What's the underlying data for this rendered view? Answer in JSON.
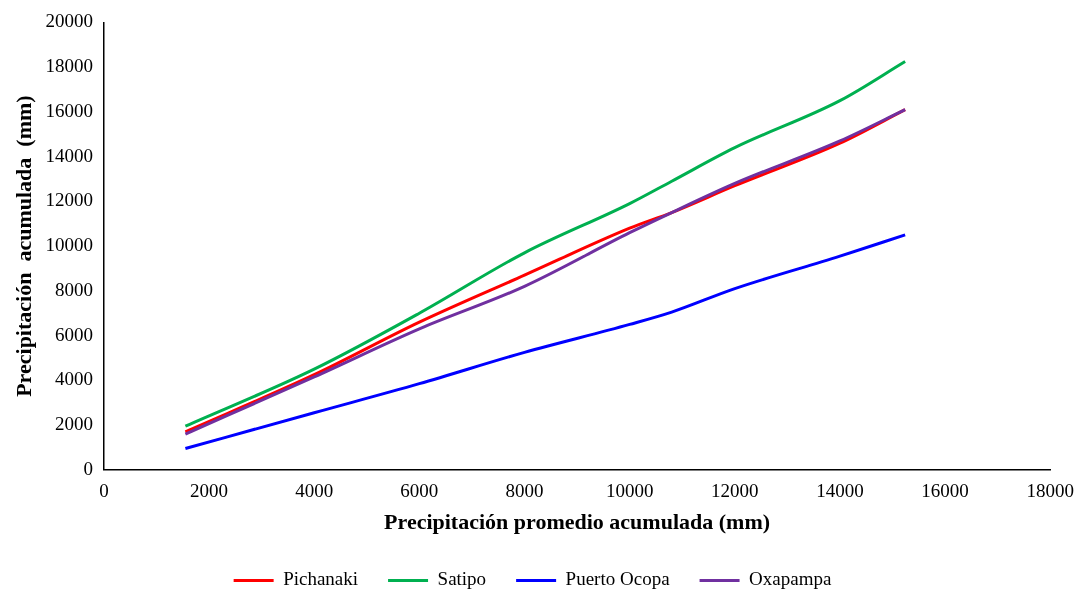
{
  "chart_data": {
    "type": "line",
    "xlabel": "Precipitación promedio acumulada (mm)",
    "ylabel": "Precipitación  acumulada  (mm)",
    "x": [
      1550,
      4000,
      6000,
      8000,
      10000,
      10800,
      12000,
      14000,
      15240
    ],
    "series": [
      {
        "name": "Pichanaki",
        "color": "#ff0000",
        "values": [
          1700,
          4250,
          6600,
          8700,
          10800,
          11500,
          12700,
          14600,
          16100
        ]
      },
      {
        "name": "Satipo",
        "color": "#00b050",
        "values": [
          1950,
          4500,
          7000,
          9700,
          11900,
          12900,
          14400,
          16500,
          18250
        ]
      },
      {
        "name": "Puerto Ocopa",
        "color": "#0000ff",
        "values": [
          950,
          2550,
          3850,
          5250,
          6500,
          7050,
          8100,
          9550,
          10500
        ]
      },
      {
        "name": "Oxapampa",
        "color": "#7030a0",
        "values": [
          1600,
          4150,
          6300,
          8200,
          10600,
          11500,
          12800,
          14700,
          16100
        ]
      }
    ],
    "xlim": [
      0,
      18000
    ],
    "xticks": [
      0,
      2000,
      4000,
      6000,
      8000,
      10000,
      12000,
      14000,
      16000,
      18000
    ],
    "ylim": [
      0,
      20000
    ],
    "yticks": [
      0,
      2000,
      4000,
      6000,
      8000,
      10000,
      12000,
      14000,
      16000,
      18000,
      20000
    ],
    "grid": false,
    "legend": "bottom",
    "marker": "none",
    "line_style": "solid"
  }
}
